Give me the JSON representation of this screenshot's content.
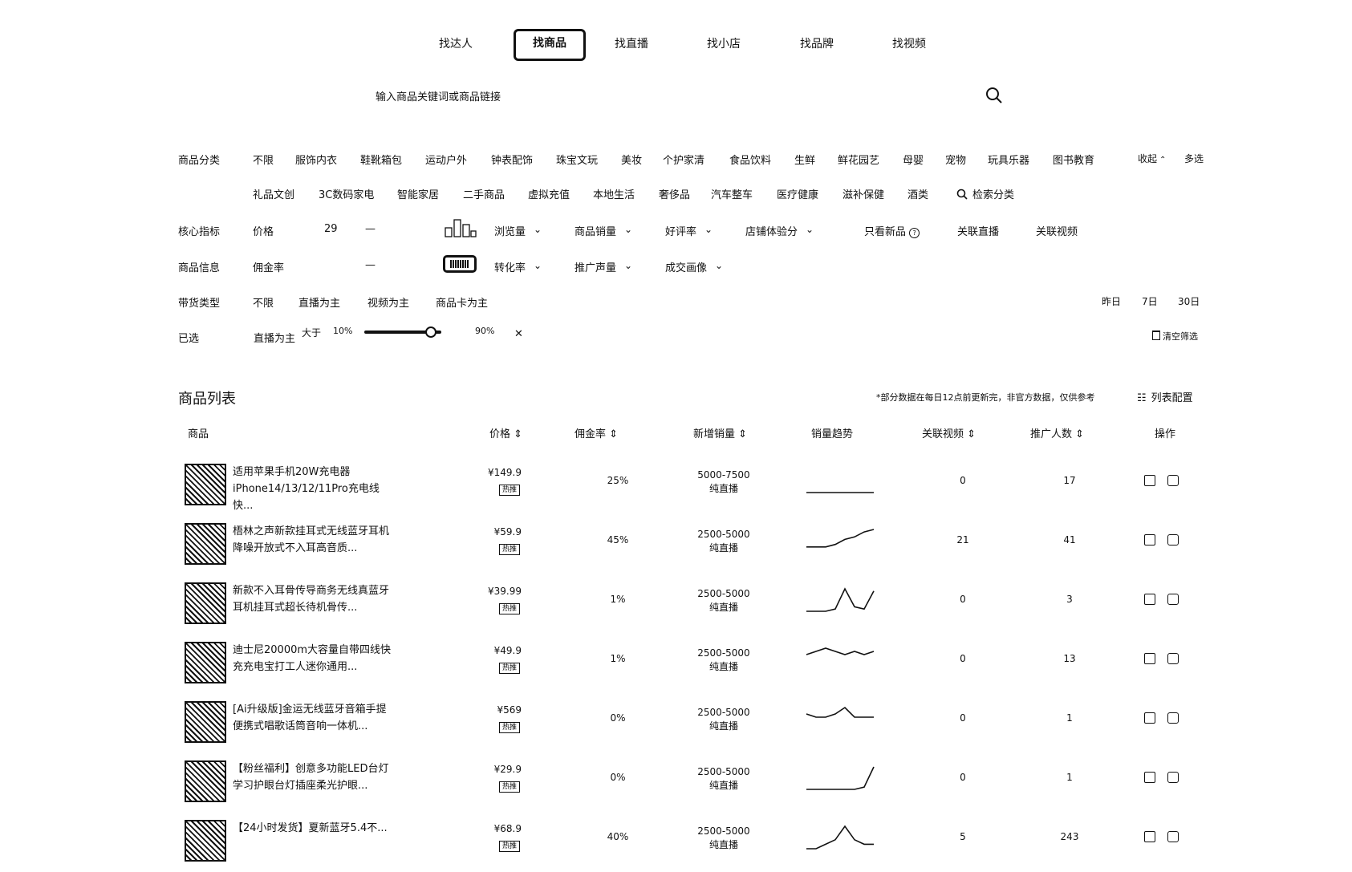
{
  "tabs": [
    "找达人",
    "找商品",
    "找直播",
    "找小店",
    "找品牌",
    "找视频"
  ],
  "search": {
    "placeholder": "输入商品关键词或商品链接"
  },
  "category": {
    "label": "商品分类",
    "row1": [
      "不限",
      "服饰内衣",
      "鞋靴箱包",
      "运动户外",
      "钟表配饰",
      "珠宝文玩",
      "美妆",
      "个护家清",
      "食品饮料",
      "生鲜",
      "鲜花园艺",
      "母婴",
      "宠物",
      "玩具乐器",
      "图书教育"
    ],
    "row2": [
      "礼品文创",
      "3C数码家电",
      "智能家居",
      "二手商品",
      "虚拟充值",
      "本地生活",
      "奢侈品",
      "汽车整车",
      "医疗健康",
      "滋补保健",
      "酒类"
    ],
    "search_label": "检索分类",
    "collapse": "收起",
    "multi": "多选"
  },
  "core": {
    "label": "核心指标",
    "price_label": "价格",
    "price_min": "29",
    "dash": "—",
    "dropdowns1": [
      "浏览量",
      "商品销量",
      "好评率",
      "店铺体验分"
    ],
    "only_new": "只看新品",
    "rel_live": "关联直播",
    "rel_video": "关联视频"
  },
  "info": {
    "label": "商品信息",
    "commission_label": "佣金率",
    "dash": "—",
    "dropdowns2": [
      "转化率",
      "推广声量",
      "成交画像"
    ]
  },
  "type": {
    "label": "带货类型",
    "options": [
      "不限",
      "直播为主",
      "视频为主",
      "商品卡为主"
    ],
    "periods": [
      "昨日",
      "7日",
      "30日"
    ]
  },
  "selected": {
    "label": "已选",
    "chip": "直播为主",
    "slider_label": "大于",
    "slider_min": "10%",
    "slider_max": "90%",
    "slider_value": 0.85,
    "clear": "清空筛选"
  },
  "list": {
    "title": "商品列表",
    "note": "*部分数据在每日12点前更新完，非官方数据，仅供参考",
    "config": "列表配置",
    "headers": [
      "商品",
      "价格",
      "佣金率",
      "新增销量",
      "销量趋势",
      "关联视频",
      "推广人数",
      "操作"
    ],
    "rows": [
      {
        "title": "适用苹果手机20W充电器iPhone14/13/12/11Pro充电线快...",
        "price": "¥149.9",
        "tag": "热推",
        "commission": "25%",
        "sales": "5000-7500",
        "sales_sub": "纯直播",
        "videos": "0",
        "promoters": "17",
        "trend": [
          0,
          0,
          0,
          0,
          0,
          0,
          0,
          0
        ]
      },
      {
        "title": "梧林之声新款挂耳式无线蓝牙耳机降噪开放式不入耳高音质...",
        "price": "¥59.9",
        "tag": "热推",
        "commission": "45%",
        "sales": "2500-5000",
        "sales_sub": "纯直播",
        "videos": "21",
        "promoters": "41",
        "trend": [
          2,
          2,
          2,
          3,
          5,
          6,
          8,
          9
        ]
      },
      {
        "title": "新款不入耳骨传导商务无线真蓝牙耳机挂耳式超长待机骨传...",
        "price": "¥39.99",
        "tag": "热推",
        "commission": "1%",
        "sales": "2500-5000",
        "sales_sub": "纯直播",
        "videos": "0",
        "promoters": "3",
        "trend": [
          0,
          0,
          0,
          1,
          10,
          2,
          1,
          9
        ]
      },
      {
        "title": "迪士尼20000m大容量自带四线快充充电宝打工人迷你通用...",
        "price": "¥49.9",
        "tag": "热推",
        "commission": "1%",
        "sales": "2500-5000",
        "sales_sub": "纯直播",
        "videos": "0",
        "promoters": "13",
        "trend": [
          5,
          6,
          7,
          6,
          5,
          6,
          5,
          6
        ]
      },
      {
        "title": "[Ai升级版]金运无线蓝牙音箱手提便携式唱歌话筒音响一体机...",
        "price": "¥569",
        "tag": "热推",
        "commission": "0%",
        "sales": "2500-5000",
        "sales_sub": "纯直播",
        "videos": "0",
        "promoters": "1",
        "trend": [
          5,
          4,
          4,
          5,
          7,
          4,
          4,
          4
        ]
      },
      {
        "title": "【粉丝福利】创意多功能LED台灯学习护眼台灯插座柔光护眼...",
        "price": "¥29.9",
        "tag": "热推",
        "commission": "0%",
        "sales": "2500-5000",
        "sales_sub": "纯直播",
        "videos": "0",
        "promoters": "1",
        "trend": [
          0,
          0,
          0,
          0,
          0,
          0,
          1,
          10
        ]
      },
      {
        "title": "【24小时发货】夏新蓝牙5.4不...",
        "price": "¥68.9",
        "tag": "热推",
        "commission": "40%",
        "sales": "2500-5000",
        "sales_sub": "纯直播",
        "videos": "5",
        "promoters": "243",
        "trend": [
          0,
          0,
          1,
          2,
          5,
          2,
          1,
          1
        ]
      }
    ]
  }
}
